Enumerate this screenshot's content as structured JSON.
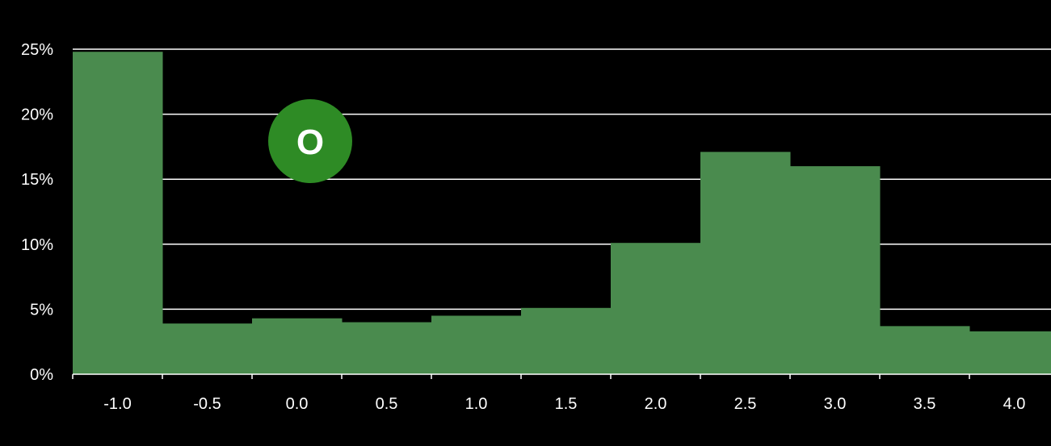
{
  "chart_data": {
    "type": "bar",
    "title": "",
    "xlabel": "",
    "ylabel": "",
    "categories": [
      "-1.0",
      "-0.5",
      "0.0",
      "0.5",
      "1.0",
      "1.5",
      "2.0",
      "2.5",
      "3.0",
      "3.5",
      "4.0"
    ],
    "values": [
      24.8,
      3.9,
      4.3,
      4.0,
      4.5,
      5.1,
      10.1,
      17.1,
      16.0,
      3.7,
      3.3
    ],
    "value_unit": "%",
    "ylim": [
      0,
      25
    ],
    "y_ticks": [
      "0%",
      "5%",
      "10%",
      "15%",
      "20%",
      "25%"
    ],
    "y_tick_values": [
      0,
      5,
      10,
      15,
      20,
      25
    ],
    "grid": true,
    "bar_color": "#4a8b4e",
    "background": "#000000",
    "gridline_color": "#ffffff",
    "tick_label_color": "#ffffff"
  },
  "badge": {
    "letter": "O",
    "color": "#2e8b25",
    "text_color": "#ffffff"
  }
}
